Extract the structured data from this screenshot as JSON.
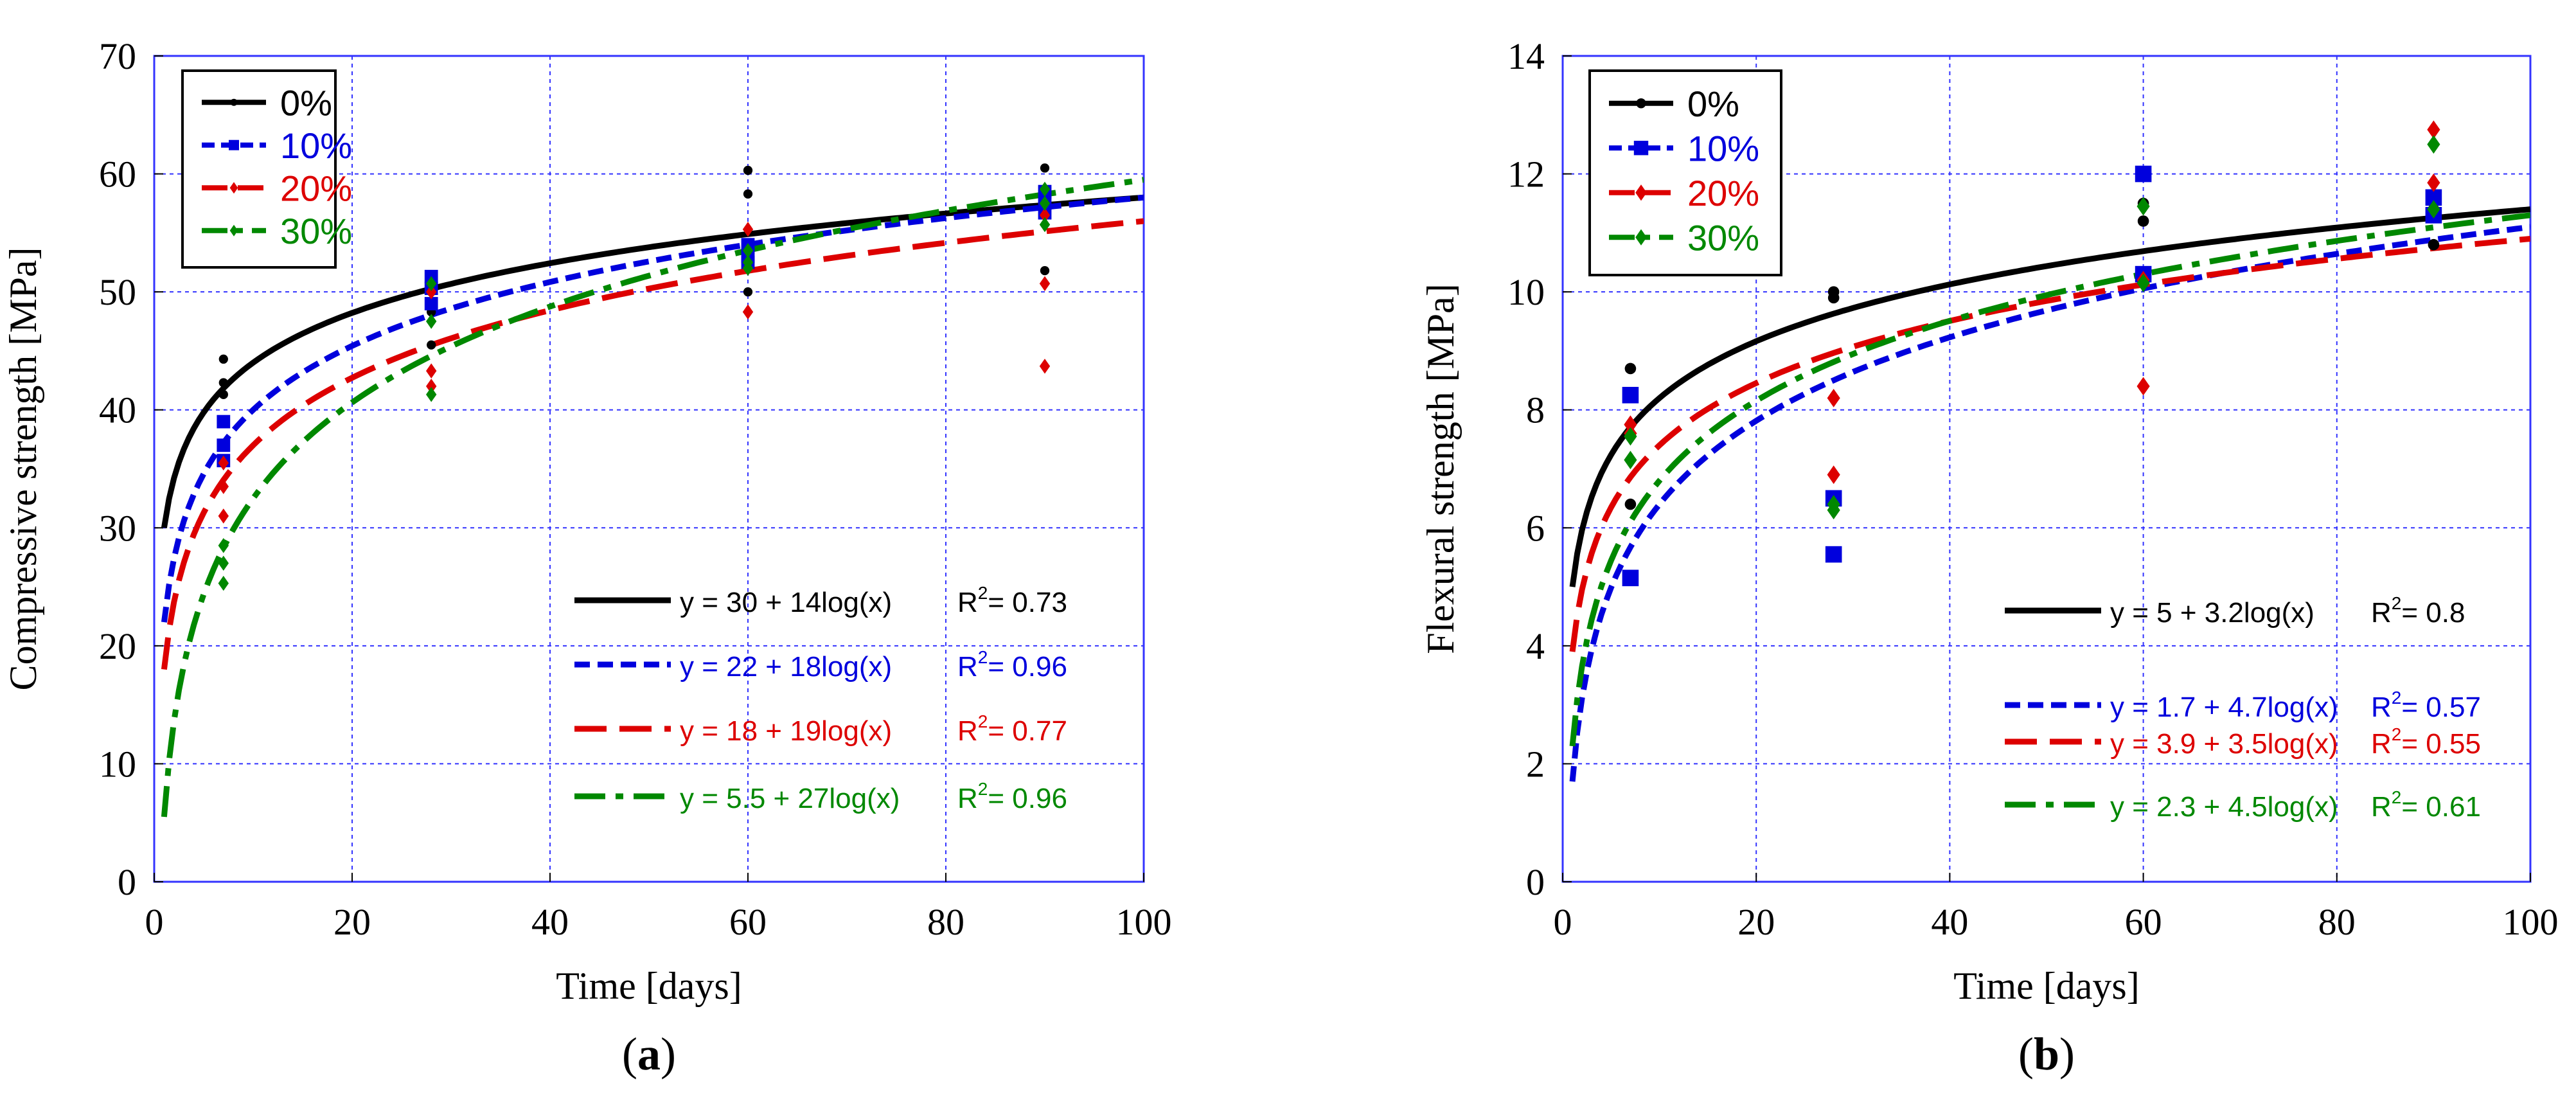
{
  "chart_data": [
    {
      "type": "scatter",
      "panel_label": "(a)",
      "panel_label_letter": "a",
      "title": "",
      "xlabel": "Time [days]",
      "ylabel": "Compressive strength [MPa]",
      "xlim": [
        0,
        100
      ],
      "ylim": [
        0,
        70
      ],
      "xticks": [
        0,
        20,
        40,
        60,
        80,
        100
      ],
      "yticks": [
        0,
        10,
        20,
        30,
        40,
        50,
        60,
        70
      ],
      "xtick_labels": [
        "0",
        "20",
        "40",
        "60",
        "80",
        "100"
      ],
      "ytick_labels": [
        "0",
        "10",
        "20",
        "30",
        "40",
        "50",
        "60",
        "70"
      ],
      "grid": true,
      "legend_position": "top-left",
      "series": [
        {
          "name": "0%",
          "color": "#000000",
          "marker": "circle",
          "points": [
            [
              7,
              44.3
            ],
            [
              7,
              42.3
            ],
            [
              7,
              41.3
            ],
            [
              28,
              50.0
            ],
            [
              28,
              48.3
            ],
            [
              28,
              45.5
            ],
            [
              60,
              60.3
            ],
            [
              60,
              58.3
            ],
            [
              60,
              52.7
            ],
            [
              60,
              50.0
            ],
            [
              90,
              60.5
            ],
            [
              90,
              57.3
            ],
            [
              90,
              51.8
            ]
          ],
          "fit": {
            "a": 30,
            "b": 14,
            "equation": "y = 30 + 14log(x)",
            "r2_label": "R",
            "r2_value": "= 0.73",
            "color": "#000000",
            "dash": "solid"
          }
        },
        {
          "name": "10%",
          "color": "#0000dd",
          "marker": "square",
          "points": [
            [
              7,
              39.0
            ],
            [
              7,
              37.0
            ],
            [
              7,
              35.7
            ],
            [
              28,
              51.3
            ],
            [
              28,
              50.3
            ],
            [
              28,
              49.0
            ],
            [
              60,
              54.0
            ],
            [
              60,
              53.0
            ],
            [
              60,
              52.5
            ],
            [
              90,
              58.5
            ],
            [
              90,
              57.5
            ],
            [
              90,
              56.7
            ]
          ],
          "fit": {
            "a": 22,
            "b": 18,
            "equation": "y = 22 + 18log(x)",
            "r2_label": "R",
            "r2_value": "= 0.96",
            "color": "#0000dd",
            "dash": "short"
          }
        },
        {
          "name": "20%",
          "color": "#dd0000",
          "marker": "diamond",
          "points": [
            [
              7,
              35.5
            ],
            [
              7,
              33.5
            ],
            [
              7,
              31.0
            ],
            [
              28,
              50.0
            ],
            [
              28,
              43.3
            ],
            [
              28,
              42.0
            ],
            [
              60,
              55.3
            ],
            [
              60,
              52.0
            ],
            [
              60,
              48.3
            ],
            [
              90,
              56.5
            ],
            [
              90,
              50.7
            ],
            [
              90,
              43.7
            ]
          ],
          "fit": {
            "a": 18,
            "b": 19,
            "equation": "y = 18 + 19log(x)",
            "r2_label": "R",
            "r2_value": "= 0.77",
            "color": "#dd0000",
            "dash": "long"
          }
        },
        {
          "name": "30%",
          "color": "#008800",
          "marker": "diamond",
          "points": [
            [
              7,
              28.5
            ],
            [
              7,
              27.0
            ],
            [
              7,
              25.3
            ],
            [
              28,
              50.7
            ],
            [
              28,
              47.5
            ],
            [
              28,
              41.3
            ],
            [
              60,
              53.5
            ],
            [
              60,
              52.5
            ],
            [
              60,
              52.0
            ],
            [
              90,
              58.7
            ],
            [
              90,
              57.5
            ],
            [
              90,
              55.7
            ]
          ],
          "fit": {
            "a": 5.5,
            "b": 27,
            "equation": "y = 5.5 + 27log(x)",
            "r2_label": "R",
            "r2_value": "= 0.96",
            "color": "#008800",
            "dash": "dashdot"
          }
        }
      ]
    },
    {
      "type": "scatter",
      "panel_label": "(b)",
      "panel_label_letter": "b",
      "title": "",
      "xlabel": "Time [days]",
      "ylabel": "Flexural strength [MPa]",
      "xlim": [
        0,
        100
      ],
      "ylim": [
        0,
        14
      ],
      "xticks": [
        0,
        20,
        40,
        60,
        80,
        100
      ],
      "yticks": [
        0,
        2,
        4,
        6,
        8,
        10,
        12,
        14
      ],
      "xtick_labels": [
        "0",
        "20",
        "40",
        "60",
        "80",
        "100"
      ],
      "ytick_labels": [
        "0",
        "2",
        "4",
        "6",
        "8",
        "10",
        "12",
        "14"
      ],
      "grid": true,
      "legend_position": "top-left",
      "series": [
        {
          "name": "0%",
          "color": "#000000",
          "marker": "circle",
          "points": [
            [
              7,
              8.7
            ],
            [
              7,
              6.4
            ],
            [
              28,
              10.0
            ],
            [
              28,
              9.9
            ],
            [
              60,
              11.5
            ],
            [
              60,
              11.2
            ],
            [
              90,
              11.4
            ],
            [
              90,
              10.8
            ]
          ],
          "fit": {
            "a": 5,
            "b": 3.2,
            "equation": "y = 5 + 3.2log(x)",
            "r2_label": "R",
            "r2_value": "= 0.8",
            "color": "#000000",
            "dash": "solid"
          }
        },
        {
          "name": "10%",
          "color": "#0000dd",
          "marker": "square",
          "points": [
            [
              7,
              8.25
            ],
            [
              7,
              5.15
            ],
            [
              28,
              6.5
            ],
            [
              28,
              5.55
            ],
            [
              60,
              12.0
            ],
            [
              60,
              10.3
            ],
            [
              90,
              11.6
            ],
            [
              90,
              11.3
            ]
          ],
          "fit": {
            "a": 1.7,
            "b": 4.7,
            "equation": "y = 1.7 + 4.7log(x)",
            "r2_label": "R",
            "r2_value": "= 0.57",
            "color": "#0000dd",
            "dash": "short"
          }
        },
        {
          "name": "20%",
          "color": "#dd0000",
          "marker": "diamond",
          "points": [
            [
              7,
              7.75
            ],
            [
              7,
              7.6
            ],
            [
              28,
              8.2
            ],
            [
              28,
              6.9
            ],
            [
              60,
              8.4
            ],
            [
              60,
              10.2
            ],
            [
              90,
              12.75
            ],
            [
              90,
              11.85
            ]
          ],
          "fit": {
            "a": 3.9,
            "b": 3.5,
            "equation": "y = 3.9 + 3.5log(x)",
            "r2_label": "R",
            "r2_value": "= 0.55",
            "color": "#dd0000",
            "dash": "long"
          }
        },
        {
          "name": "30%",
          "color": "#008800",
          "marker": "diamond",
          "points": [
            [
              7,
              7.15
            ],
            [
              7,
              7.55
            ],
            [
              28,
              6.3
            ],
            [
              28,
              6.4
            ],
            [
              60,
              11.45
            ],
            [
              60,
              10.15
            ],
            [
              90,
              12.5
            ],
            [
              90,
              11.4
            ]
          ],
          "fit": {
            "a": 2.3,
            "b": 4.5,
            "equation": "y = 2.3 + 4.5log(x)",
            "r2_label": "R",
            "r2_value": "= 0.61",
            "color": "#008800",
            "dash": "dashdot"
          }
        }
      ]
    }
  ]
}
